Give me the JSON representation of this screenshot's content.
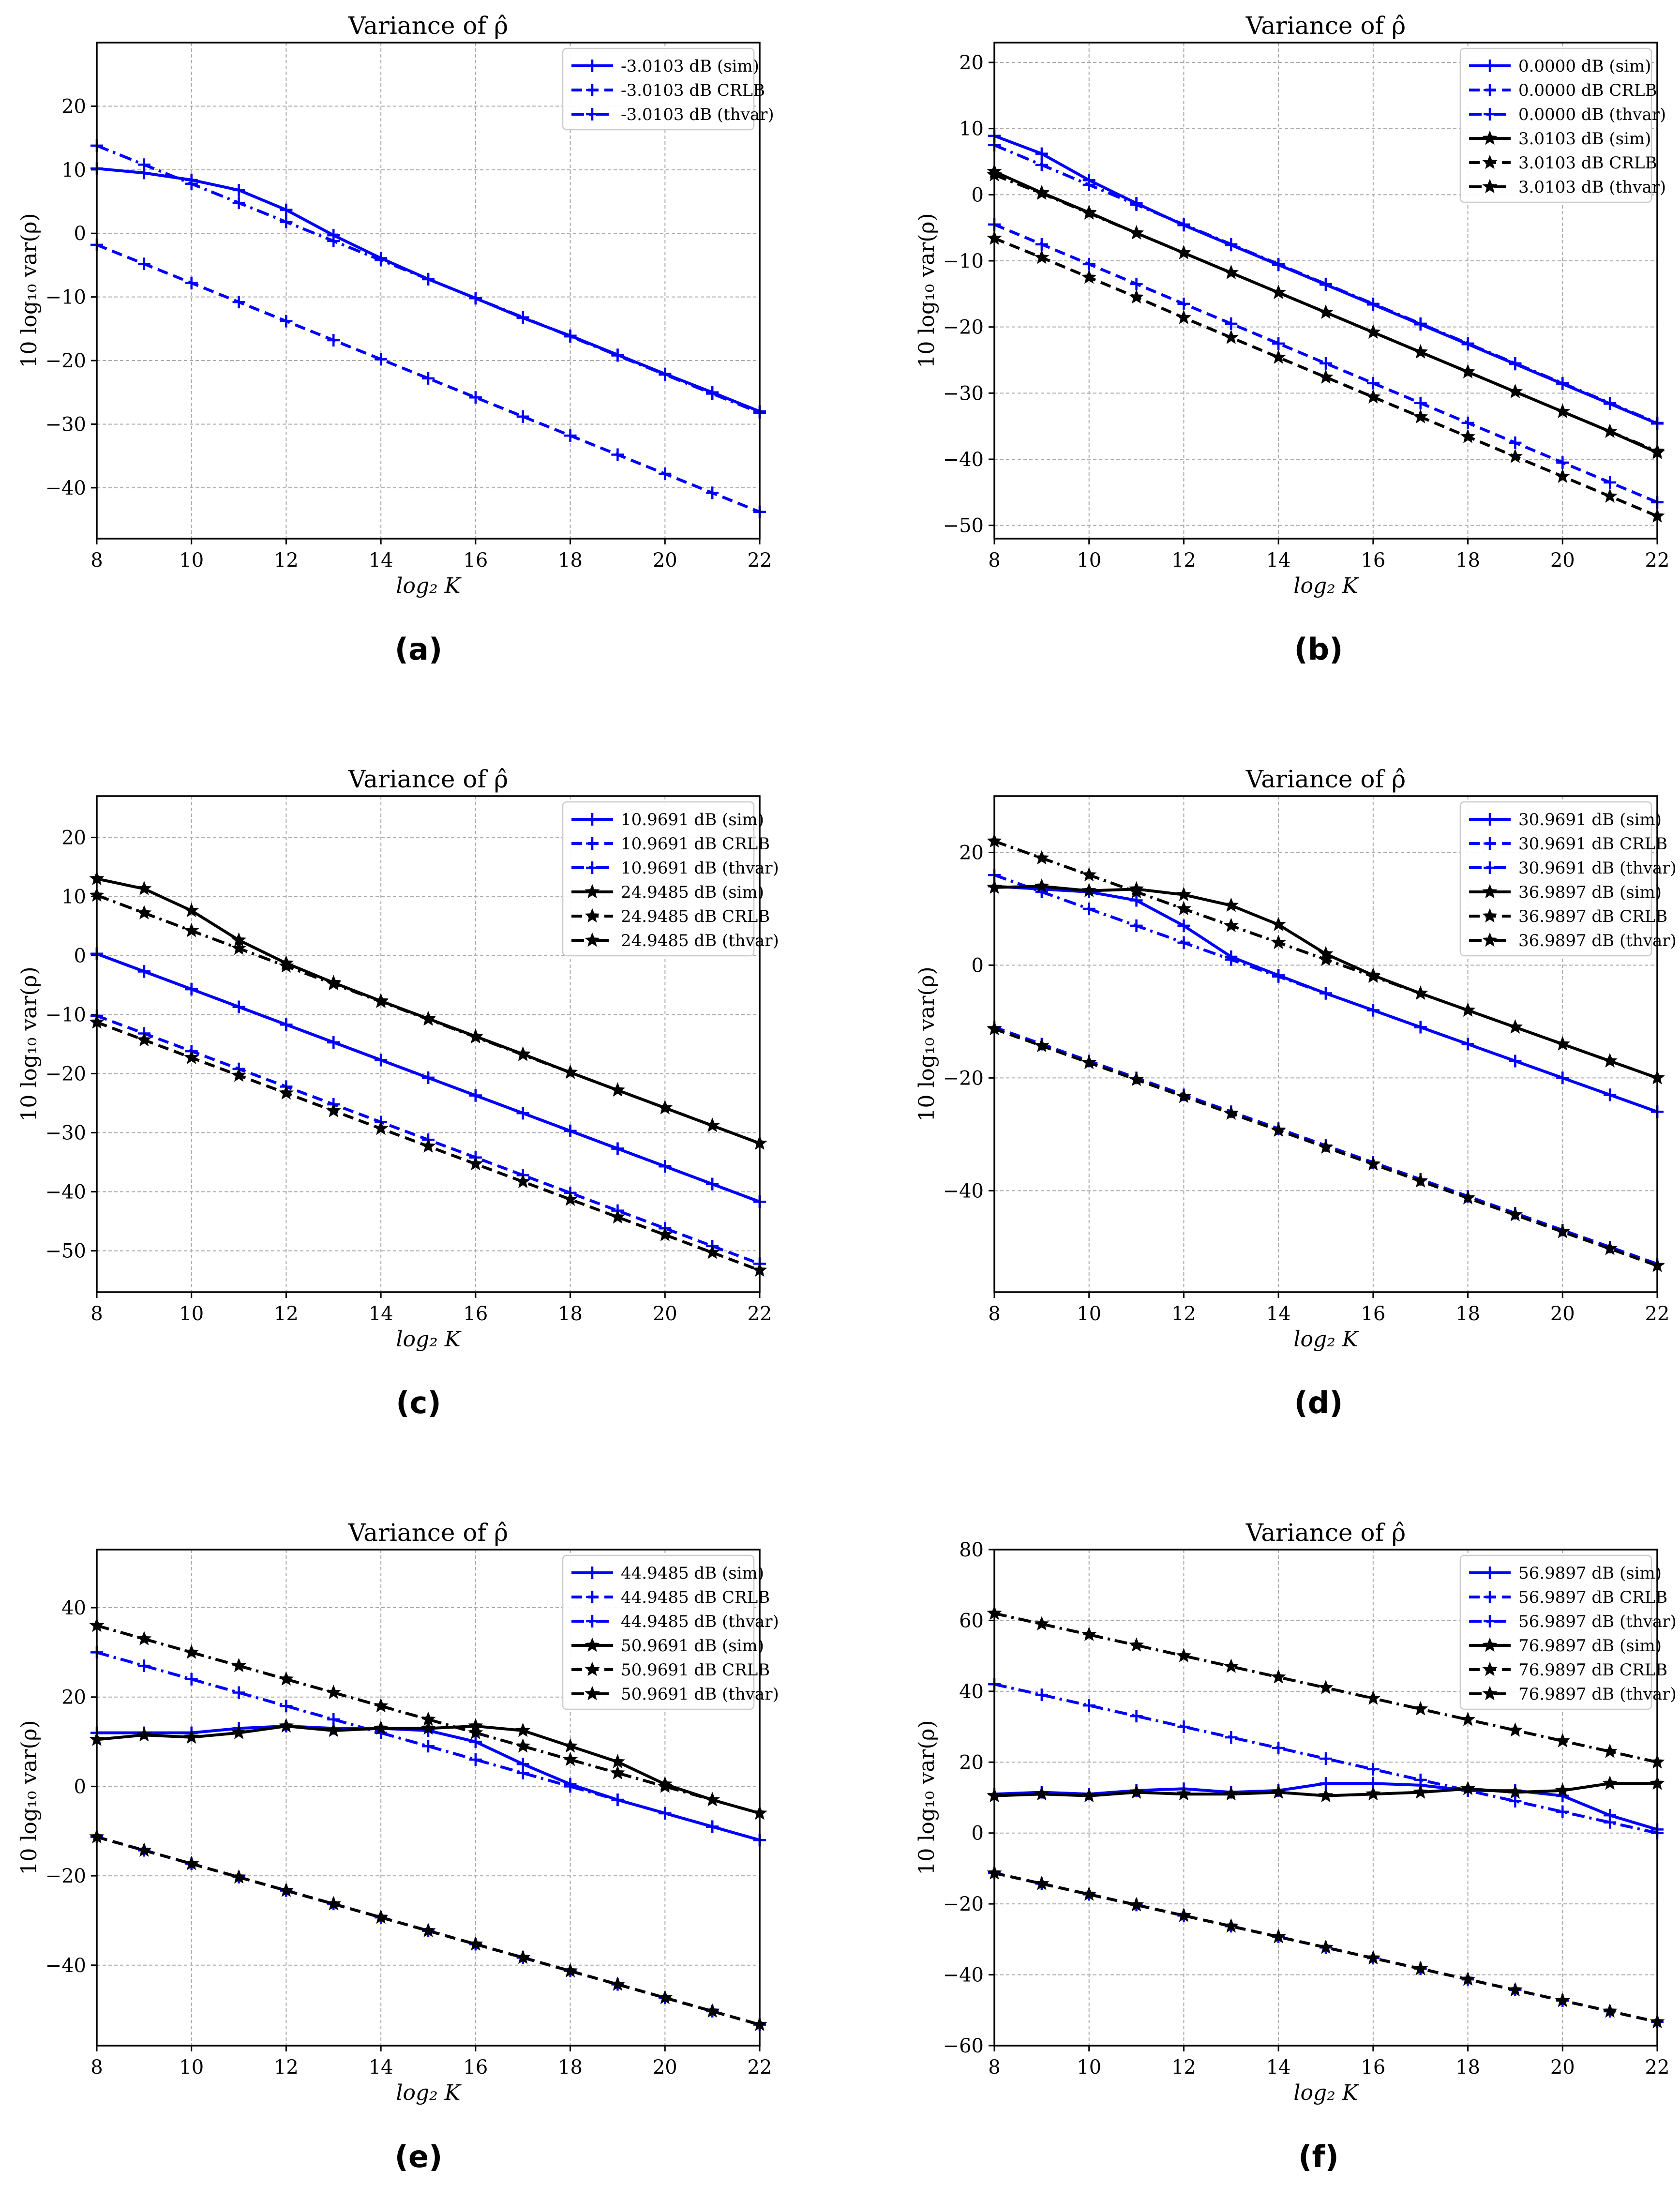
{
  "chart_data": [
    {
      "id": "a",
      "type": "line",
      "title": "Variance of ρ̂",
      "xlabel": "log₂ K",
      "ylabel": "10 log₁₀ var(ρ)",
      "xlim": [
        8,
        22
      ],
      "ylim": [
        -48,
        30
      ],
      "xticks": [
        8,
        10,
        12,
        14,
        16,
        18,
        20,
        22
      ],
      "yticks": [
        -40,
        -30,
        -20,
        -10,
        0,
        10,
        20
      ],
      "grid": true,
      "legend_position": "top-right",
      "x": [
        8,
        9,
        10,
        11,
        12,
        13,
        14,
        15,
        16,
        17,
        18,
        19,
        20,
        21,
        22
      ],
      "series": [
        {
          "name": "-3.0103 dB (sim)",
          "color": "#0000ff",
          "style": "solid",
          "marker": "plus",
          "values": [
            10.2,
            9.5,
            8.4,
            6.8,
            3.7,
            -0.3,
            -3.9,
            -7.2,
            -10.2,
            -13.3,
            -16.1,
            -19.1,
            -22.1,
            -25.0,
            -28.0
          ]
        },
        {
          "name": "-3.0103 dB CRLB",
          "color": "#0000ff",
          "style": "dashed",
          "marker": "plus",
          "values": [
            -1.8,
            -4.8,
            -7.8,
            -10.8,
            -13.8,
            -16.8,
            -19.8,
            -22.8,
            -25.8,
            -28.8,
            -31.8,
            -34.8,
            -37.8,
            -40.8,
            -43.8
          ]
        },
        {
          "name": "-3.0103 dB (thvar)",
          "color": "#0000ff",
          "style": "dashdot",
          "marker": "plus",
          "values": [
            13.8,
            10.8,
            7.8,
            4.8,
            1.8,
            -1.2,
            -4.2,
            -7.2,
            -10.2,
            -13.2,
            -16.2,
            -19.2,
            -22.2,
            -25.2,
            -28.2
          ]
        }
      ],
      "caption": "(a)"
    },
    {
      "id": "b",
      "type": "line",
      "title": "Variance of ρ̂",
      "xlabel": "log₂ K",
      "ylabel": "10 log₁₀ var(ρ)",
      "xlim": [
        8,
        22
      ],
      "ylim": [
        -52,
        23
      ],
      "xticks": [
        8,
        10,
        12,
        14,
        16,
        18,
        20,
        22
      ],
      "yticks": [
        -50,
        -40,
        -30,
        -20,
        -10,
        0,
        10,
        20
      ],
      "grid": true,
      "legend_position": "top-right",
      "x": [
        8,
        9,
        10,
        11,
        12,
        13,
        14,
        15,
        16,
        17,
        18,
        19,
        20,
        21,
        22
      ],
      "series": [
        {
          "name": "0.0000 dB (sim)",
          "color": "#0000ff",
          "style": "solid",
          "marker": "plus",
          "values": [
            8.9,
            6.2,
            2.2,
            -1.3,
            -4.6,
            -7.6,
            -10.6,
            -13.6,
            -16.6,
            -19.6,
            -22.6,
            -25.6,
            -28.6,
            -31.6,
            -34.6
          ]
        },
        {
          "name": "0.0000 dB CRLB",
          "color": "#0000ff",
          "style": "dashed",
          "marker": "plus",
          "values": [
            -4.5,
            -7.5,
            -10.5,
            -13.5,
            -16.5,
            -19.5,
            -22.5,
            -25.5,
            -28.5,
            -31.5,
            -34.5,
            -37.5,
            -40.5,
            -43.5,
            -46.5
          ]
        },
        {
          "name": "0.0000 dB (thvar)",
          "color": "#0000ff",
          "style": "dashdot",
          "marker": "plus",
          "values": [
            7.5,
            4.5,
            1.5,
            -1.5,
            -4.5,
            -7.5,
            -10.5,
            -13.5,
            -16.5,
            -19.5,
            -22.5,
            -25.5,
            -28.5,
            -31.5,
            -34.5
          ]
        },
        {
          "name": "3.0103 dB (sim)",
          "color": "#000000",
          "style": "solid",
          "marker": "star",
          "values": [
            3.5,
            0.3,
            -2.7,
            -5.8,
            -8.8,
            -11.8,
            -14.8,
            -17.8,
            -20.8,
            -23.8,
            -26.8,
            -29.8,
            -32.8,
            -35.8,
            -39.0
          ]
        },
        {
          "name": "3.0103 dB CRLB",
          "color": "#000000",
          "style": "dashed",
          "marker": "star",
          "values": [
            -6.6,
            -9.5,
            -12.5,
            -15.5,
            -18.6,
            -21.6,
            -24.6,
            -27.6,
            -30.6,
            -33.6,
            -36.6,
            -39.6,
            -42.6,
            -45.6,
            -48.6
          ]
        },
        {
          "name": "3.0103 dB (thvar)",
          "color": "#000000",
          "style": "dashdot",
          "marker": "star",
          "values": [
            3.0,
            0.2,
            -2.8,
            -5.8,
            -8.8,
            -11.8,
            -14.8,
            -17.8,
            -20.8,
            -23.8,
            -26.8,
            -29.8,
            -32.8,
            -35.8,
            -38.8
          ]
        }
      ],
      "caption": "(b)"
    },
    {
      "id": "c",
      "type": "line",
      "title": "Variance of ρ̂",
      "xlabel": "log₂ K",
      "ylabel": "10 log₁₀ var(ρ)",
      "xlim": [
        8,
        22
      ],
      "ylim": [
        -57,
        27
      ],
      "xticks": [
        8,
        10,
        12,
        14,
        16,
        18,
        20,
        22
      ],
      "yticks": [
        -50,
        -40,
        -30,
        -20,
        -10,
        0,
        10,
        20
      ],
      "grid": true,
      "legend_position": "top-right",
      "x": [
        8,
        9,
        10,
        11,
        12,
        13,
        14,
        15,
        16,
        17,
        18,
        19,
        20,
        21,
        22
      ],
      "series": [
        {
          "name": "10.9691 dB (sim)",
          "color": "#0000ff",
          "style": "solid",
          "marker": "plus",
          "values": [
            0.3,
            -2.7,
            -5.7,
            -8.7,
            -11.7,
            -14.7,
            -17.7,
            -20.7,
            -23.7,
            -26.7,
            -29.7,
            -32.7,
            -35.7,
            -38.7,
            -41.7
          ]
        },
        {
          "name": "10.9691 dB CRLB",
          "color": "#0000ff",
          "style": "dashed",
          "marker": "plus",
          "values": [
            -10.2,
            -13.2,
            -16.2,
            -19.2,
            -22.2,
            -25.2,
            -28.2,
            -31.2,
            -34.2,
            -37.2,
            -40.2,
            -43.2,
            -46.2,
            -49.2,
            -52.2
          ]
        },
        {
          "name": "10.9691 dB (thvar)",
          "color": "#0000ff",
          "style": "dashdot",
          "marker": "plus",
          "values": [
            0.3,
            -2.7,
            -5.7,
            -8.7,
            -11.7,
            -14.7,
            -17.7,
            -20.7,
            -23.7,
            -26.7,
            -29.7,
            -32.7,
            -35.7,
            -38.7,
            -41.7
          ]
        },
        {
          "name": "24.9485 dB (sim)",
          "color": "#000000",
          "style": "solid",
          "marker": "star",
          "values": [
            13.0,
            11.3,
            7.6,
            2.6,
            -1.3,
            -4.6,
            -7.7,
            -10.7,
            -13.7,
            -16.7,
            -19.8,
            -22.8,
            -25.8,
            -28.8,
            -31.8
          ]
        },
        {
          "name": "24.9485 dB CRLB",
          "color": "#000000",
          "style": "dashed",
          "marker": "star",
          "values": [
            -11.3,
            -14.3,
            -17.3,
            -20.3,
            -23.3,
            -26.3,
            -29.3,
            -32.3,
            -35.3,
            -38.3,
            -41.3,
            -44.3,
            -47.3,
            -50.3,
            -53.3
          ]
        },
        {
          "name": "24.9485 dB (thvar)",
          "color": "#000000",
          "style": "dashdot",
          "marker": "star",
          "values": [
            10.2,
            7.2,
            4.2,
            1.2,
            -1.8,
            -4.8,
            -7.8,
            -10.8,
            -13.8,
            -16.8,
            -19.8,
            -22.8,
            -25.8,
            -28.8,
            -31.8
          ]
        }
      ],
      "caption": "(c)"
    },
    {
      "id": "d",
      "type": "line",
      "title": "Variance of ρ̂",
      "xlabel": "log₂ K",
      "ylabel": "10 log₁₀ var(ρ)",
      "xlim": [
        8,
        22
      ],
      "ylim": [
        -58,
        30
      ],
      "xticks": [
        8,
        10,
        12,
        14,
        16,
        18,
        20,
        22
      ],
      "yticks": [
        -40,
        -20,
        0,
        20
      ],
      "grid": true,
      "legend_position": "top-right",
      "x": [
        8,
        9,
        10,
        11,
        12,
        13,
        14,
        15,
        16,
        17,
        18,
        19,
        20,
        21,
        22
      ],
      "series": [
        {
          "name": "30.9691 dB (sim)",
          "color": "#0000ff",
          "style": "solid",
          "marker": "plus",
          "values": [
            14.0,
            13.5,
            13.0,
            11.5,
            7.0,
            1.5,
            -1.8,
            -5.0,
            -8.0,
            -11.0,
            -14.0,
            -17.0,
            -20.0,
            -23.0,
            -26.0
          ]
        },
        {
          "name": "30.9691 dB CRLB",
          "color": "#0000ff",
          "style": "dashed",
          "marker": "plus",
          "values": [
            -11.0,
            -14.0,
            -17.0,
            -20.0,
            -23.0,
            -26.0,
            -29.0,
            -32.0,
            -35.0,
            -38.0,
            -41.0,
            -44.0,
            -47.0,
            -50.0,
            -53.0
          ]
        },
        {
          "name": "30.9691 dB (thvar)",
          "color": "#0000ff",
          "style": "dashdot",
          "marker": "plus",
          "values": [
            16.0,
            13.0,
            10.0,
            7.0,
            4.0,
            1.0,
            -2.0,
            -5.0,
            -8.0,
            -11.0,
            -14.0,
            -17.0,
            -20.0,
            -23.0,
            -26.0
          ]
        },
        {
          "name": "36.9897 dB (sim)",
          "color": "#000000",
          "style": "solid",
          "marker": "star",
          "values": [
            13.8,
            14.0,
            13.2,
            13.5,
            12.5,
            10.6,
            7.2,
            2.0,
            -1.8,
            -5.0,
            -8.0,
            -11.0,
            -14.0,
            -17.0,
            -20.0
          ]
        },
        {
          "name": "36.9897 dB CRLB",
          "color": "#000000",
          "style": "dashed",
          "marker": "star",
          "values": [
            -11.3,
            -14.3,
            -17.3,
            -20.3,
            -23.3,
            -26.3,
            -29.3,
            -32.3,
            -35.3,
            -38.3,
            -41.3,
            -44.3,
            -47.3,
            -50.3,
            -53.3
          ]
        },
        {
          "name": "36.9897 dB (thvar)",
          "color": "#000000",
          "style": "dashdot",
          "marker": "star",
          "values": [
            22.0,
            19.0,
            16.0,
            13.0,
            10.0,
            7.0,
            4.0,
            1.0,
            -2.0,
            -5.0,
            -8.0,
            -11.0,
            -14.0,
            -17.0,
            -20.0
          ]
        }
      ],
      "caption": "(d)"
    },
    {
      "id": "e",
      "type": "line",
      "title": "Variance of ρ̂",
      "xlabel": "log₂ K",
      "ylabel": "10 log₁₀ var(ρ)",
      "xlim": [
        8,
        22
      ],
      "ylim": [
        -58,
        53
      ],
      "xticks": [
        8,
        10,
        12,
        14,
        16,
        18,
        20,
        22
      ],
      "yticks": [
        -40,
        -20,
        0,
        20,
        40
      ],
      "grid": true,
      "legend_position": "top-right",
      "x": [
        8,
        9,
        10,
        11,
        12,
        13,
        14,
        15,
        16,
        17,
        18,
        19,
        20,
        21,
        22
      ],
      "series": [
        {
          "name": "44.9485 dB (sim)",
          "color": "#0000ff",
          "style": "solid",
          "marker": "plus",
          "values": [
            12.0,
            12.0,
            12.0,
            13.0,
            13.5,
            13.0,
            13.0,
            12.5,
            10.0,
            5.0,
            0.5,
            -3.0,
            -6.0,
            -9.0,
            -12.0
          ]
        },
        {
          "name": "44.9485 dB CRLB",
          "color": "#0000ff",
          "style": "dashed",
          "marker": "plus",
          "values": [
            -11.3,
            -14.3,
            -17.3,
            -20.3,
            -23.3,
            -26.3,
            -29.3,
            -32.3,
            -35.3,
            -38.3,
            -41.3,
            -44.3,
            -47.3,
            -50.3,
            -53.3
          ]
        },
        {
          "name": "44.9485 dB (thvar)",
          "color": "#0000ff",
          "style": "dashdot",
          "marker": "plus",
          "values": [
            30.0,
            27.0,
            24.0,
            21.0,
            18.0,
            15.0,
            12.0,
            9.0,
            6.0,
            3.0,
            0.0,
            -3.0,
            -6.0,
            -9.0,
            -12.0
          ]
        },
        {
          "name": "50.9691 dB (sim)",
          "color": "#000000",
          "style": "solid",
          "marker": "star",
          "values": [
            10.5,
            11.5,
            11.0,
            12.0,
            13.5,
            12.5,
            13.0,
            13.0,
            13.5,
            12.5,
            9.0,
            5.5,
            0.5,
            -3.0,
            -6.0
          ]
        },
        {
          "name": "50.9691 dB CRLB",
          "color": "#000000",
          "style": "dashed",
          "marker": "star",
          "values": [
            -11.3,
            -14.3,
            -17.3,
            -20.3,
            -23.3,
            -26.3,
            -29.3,
            -32.3,
            -35.3,
            -38.3,
            -41.3,
            -44.3,
            -47.3,
            -50.3,
            -53.3
          ]
        },
        {
          "name": "50.9691 dB (thvar)",
          "color": "#000000",
          "style": "dashdot",
          "marker": "star",
          "values": [
            36.0,
            33.0,
            30.0,
            27.0,
            24.0,
            21.0,
            18.0,
            15.0,
            12.0,
            9.0,
            6.0,
            3.0,
            0.0,
            -3.0,
            -6.0
          ]
        }
      ],
      "caption": "(e)"
    },
    {
      "id": "f",
      "type": "line",
      "title": "Variance of ρ̂",
      "xlabel": "log₂ K",
      "ylabel": "10 log₁₀ var(ρ)",
      "xlim": [
        8,
        22
      ],
      "ylim": [
        -60,
        80
      ],
      "xticks": [
        8,
        10,
        12,
        14,
        16,
        18,
        20,
        22
      ],
      "yticks": [
        -60,
        -40,
        -20,
        0,
        20,
        40,
        60,
        80
      ],
      "grid": true,
      "legend_position": "top-right",
      "x": [
        8,
        9,
        10,
        11,
        12,
        13,
        14,
        15,
        16,
        17,
        18,
        19,
        20,
        21,
        22
      ],
      "series": [
        {
          "name": "56.9897 dB (sim)",
          "color": "#0000ff",
          "style": "solid",
          "marker": "plus",
          "values": [
            11.0,
            11.5,
            11.0,
            12.0,
            12.5,
            11.5,
            12.0,
            14.0,
            14.0,
            13.5,
            12.0,
            12.0,
            10.5,
            5.0,
            1.0
          ]
        },
        {
          "name": "56.9897 dB CRLB",
          "color": "#0000ff",
          "style": "dashed",
          "marker": "plus",
          "values": [
            -11.3,
            -14.3,
            -17.3,
            -20.3,
            -23.3,
            -26.3,
            -29.3,
            -32.3,
            -35.3,
            -38.3,
            -41.3,
            -44.3,
            -47.3,
            -50.3,
            -53.3
          ]
        },
        {
          "name": "56.9897 dB (thvar)",
          "color": "#0000ff",
          "style": "dashdot",
          "marker": "plus",
          "values": [
            42.0,
            39.0,
            36.0,
            33.0,
            30.0,
            27.0,
            24.0,
            21.0,
            18.0,
            15.0,
            12.0,
            9.0,
            6.0,
            3.0,
            0.0
          ]
        },
        {
          "name": "76.9897 dB (sim)",
          "color": "#000000",
          "style": "solid",
          "marker": "star",
          "values": [
            10.5,
            11.0,
            10.5,
            11.5,
            11.0,
            11.0,
            11.5,
            10.5,
            11.0,
            11.5,
            12.5,
            11.5,
            12.0,
            14.0,
            14.0
          ]
        },
        {
          "name": "76.9897 dB CRLB",
          "color": "#000000",
          "style": "dashed",
          "marker": "star",
          "values": [
            -11.3,
            -14.3,
            -17.3,
            -20.3,
            -23.3,
            -26.3,
            -29.3,
            -32.3,
            -35.3,
            -38.3,
            -41.3,
            -44.3,
            -47.3,
            -50.3,
            -53.3
          ]
        },
        {
          "name": "76.9897 dB (thvar)",
          "color": "#000000",
          "style": "dashdot",
          "marker": "star",
          "values": [
            62.0,
            59.0,
            56.0,
            53.0,
            50.0,
            47.0,
            44.0,
            41.0,
            38.0,
            35.0,
            32.0,
            29.0,
            26.0,
            23.0,
            20.0
          ]
        }
      ],
      "caption": "(f)"
    }
  ]
}
